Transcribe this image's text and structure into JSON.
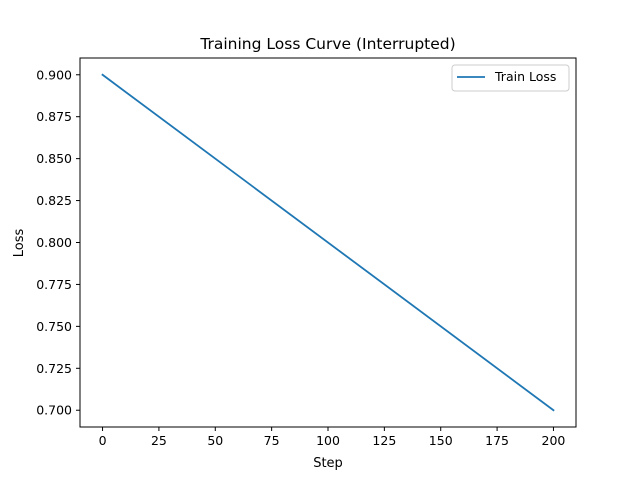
{
  "chart_data": {
    "type": "line",
    "title": "Training Loss Curve (Interrupted)",
    "xlabel": "Step",
    "ylabel": "Loss",
    "xlim": [
      -10,
      210
    ],
    "ylim": [
      0.69,
      0.91
    ],
    "xticks": [
      0,
      25,
      50,
      75,
      100,
      125,
      150,
      175,
      200
    ],
    "yticks": [
      0.7,
      0.725,
      0.75,
      0.775,
      0.8,
      0.825,
      0.85,
      0.875,
      0.9
    ],
    "ytick_labels": [
      "0.700",
      "0.725",
      "0.750",
      "0.775",
      "0.800",
      "0.825",
      "0.850",
      "0.875",
      "0.900"
    ],
    "grid": false,
    "legend_position": "top-right",
    "series": [
      {
        "name": "Train Loss",
        "color": "#1f77b4",
        "x": [
          0,
          200
        ],
        "y": [
          0.9,
          0.7
        ]
      }
    ]
  }
}
